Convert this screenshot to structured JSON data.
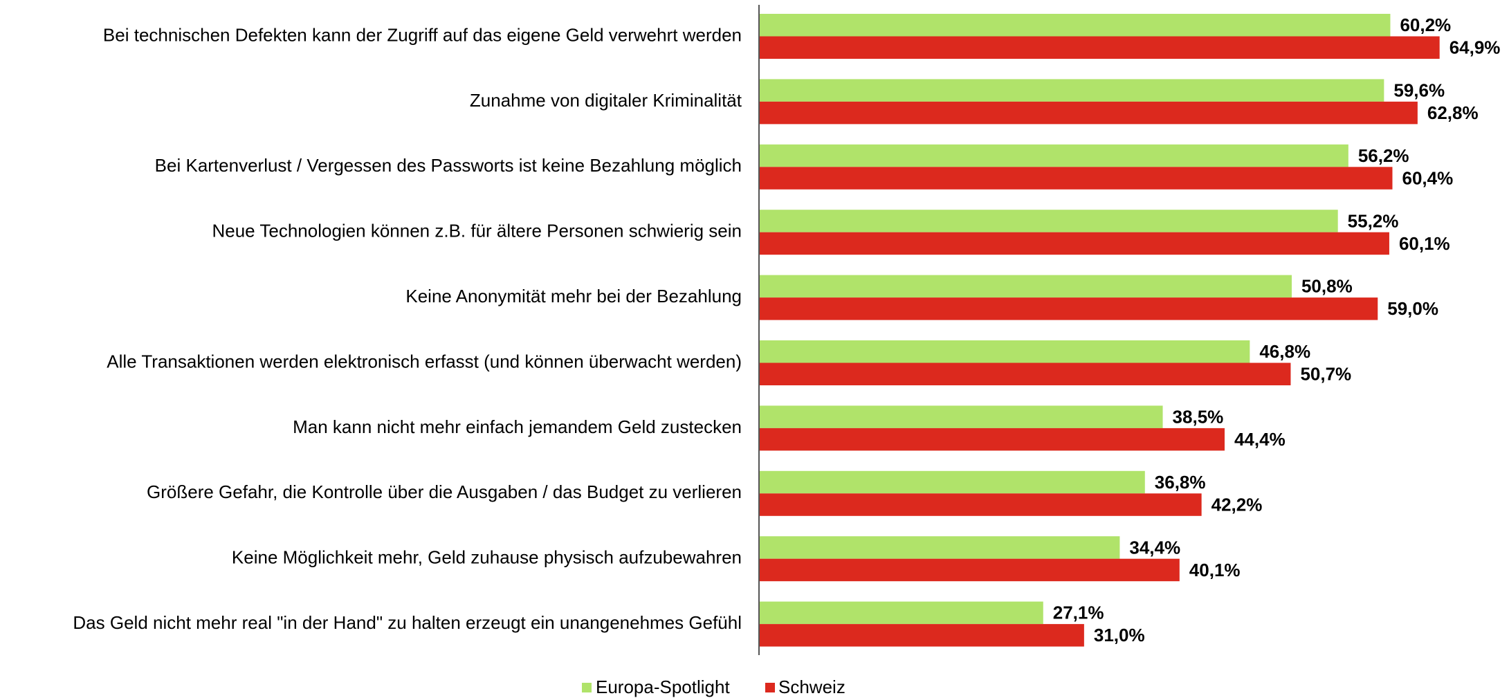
{
  "chart_data": {
    "type": "barh",
    "categories": [
      "Bei technischen Defekten kann der Zugriff auf das eigene Geld verwehrt werden",
      "Zunahme von digitaler Kriminalität",
      "Bei Kartenverlust / Vergessen des Passworts ist keine Bezahlung möglich",
      "Neue Technologien können z.B. für ältere Personen schwierig sein",
      "Keine Anonymität mehr bei der Bezahlung",
      "Alle Transaktionen werden elektronisch erfasst (und können überwacht werden)",
      "Man kann nicht mehr einfach jemandem Geld zustecken",
      "Größere Gefahr, die Kontrolle über die Ausgaben / das Budget zu verlieren",
      "Keine Möglichkeit mehr, Geld zuhause physisch aufzubewahren",
      "Das Geld nicht mehr real \"in der Hand\" zu halten erzeugt ein unangenehmes Gefühl"
    ],
    "series": [
      {
        "name": "Europa-Spotlight",
        "color": "#b0e36a",
        "values": [
          60.2,
          59.6,
          56.2,
          55.2,
          50.8,
          46.8,
          38.5,
          36.8,
          34.4,
          27.1
        ],
        "value_labels": [
          "60,2%",
          "59,6%",
          "56,2%",
          "55,2%",
          "50,8%",
          "46,8%",
          "38,5%",
          "36,8%",
          "34,4%",
          "27,1%"
        ]
      },
      {
        "name": "Schweiz",
        "color": "#dc291e",
        "values": [
          64.9,
          62.8,
          60.4,
          60.1,
          59.0,
          50.7,
          44.4,
          42.2,
          40.1,
          31.0
        ],
        "value_labels": [
          "64,9%",
          "62,8%",
          "60,4%",
          "60,1%",
          "59,0%",
          "50,7%",
          "44,4%",
          "42,2%",
          "40,1%",
          "31,0%"
        ]
      }
    ],
    "xlim": [
      0,
      70
    ],
    "legend": "bottom"
  }
}
